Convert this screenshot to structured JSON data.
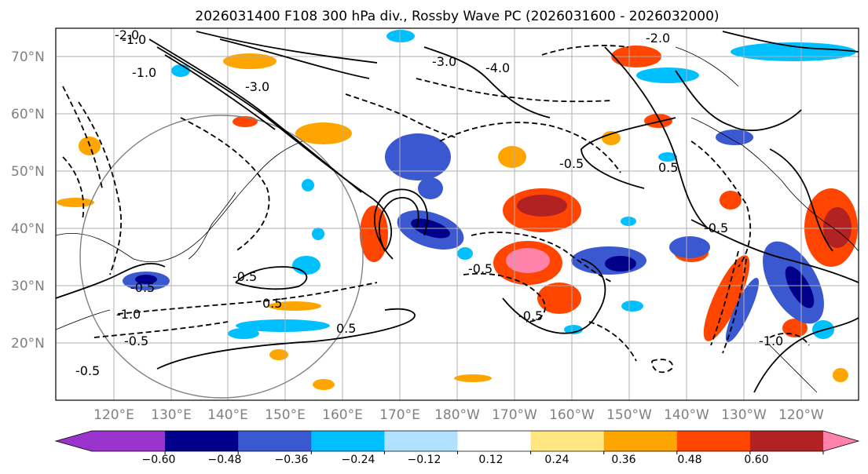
{
  "title": "2026031400 F108 300 hPa div., Rossby Wave PC (2026031600 - 2026032000)",
  "map": {
    "lat_labels": [
      "70°N",
      "60°N",
      "50°N",
      "40°N",
      "30°N",
      "20°N"
    ],
    "lon_labels": [
      "120°E",
      "130°E",
      "140°E",
      "150°E",
      "160°E",
      "170°E",
      "180°W",
      "170°W",
      "160°W",
      "150°W",
      "140°W",
      "130°W",
      "120°W"
    ],
    "contour_labels": [
      "-2.0",
      "-1.0",
      "-3.0",
      "-4.0",
      "-2.0",
      "-3.0",
      "-1.0",
      "-0.5",
      "-0.5",
      "-0.5",
      "0.5",
      "-0.5",
      "-1.0",
      "-0.5",
      "0.5",
      "-0.5",
      "-0.5",
      "-0.5",
      "-1.0",
      "0.5"
    ]
  },
  "colorbar": {
    "tick_labels": [
      "−0.60",
      "−0.48",
      "−0.36",
      "−0.24",
      "−0.12",
      "0.12",
      "0.24",
      "0.36",
      "0.48",
      "0.60"
    ],
    "colors": [
      "#9a32cd",
      "#00008b",
      "#3a58d0",
      "#00bfff",
      "#b0e2ff",
      "#ffffff",
      "#ffe680",
      "#ffa500",
      "#ff4500",
      "#b22222",
      "#ff82ab",
      "#ff82ab"
    ]
  }
}
